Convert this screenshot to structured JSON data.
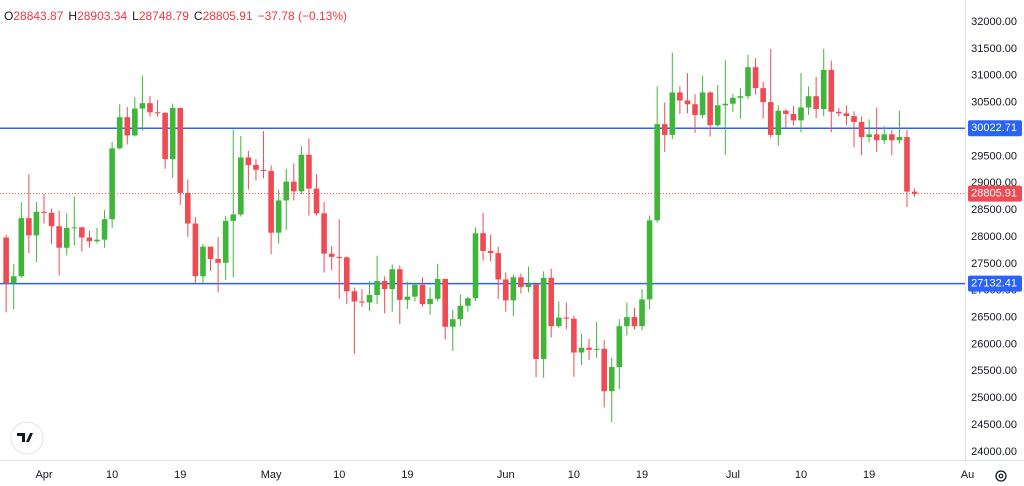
{
  "chart_data": {
    "type": "candlestick",
    "header_labels": [
      "O",
      "H",
      "L",
      "C"
    ],
    "change_text": "−37.78 (−0.13%)",
    "up_color": "#3fb63a",
    "down_color": "#ef4b54",
    "categories": [
      null,
      null,
      null,
      null,
      null,
      "Apr",
      null,
      null,
      null,
      null,
      null,
      null,
      null,
      null,
      "10",
      null,
      null,
      null,
      null,
      null,
      null,
      null,
      null,
      "19",
      null,
      null,
      null,
      null,
      null,
      null,
      null,
      null,
      null,
      null,
      null,
      "May",
      null,
      null,
      null,
      null,
      null,
      null,
      null,
      null,
      "10",
      null,
      null,
      null,
      null,
      null,
      null,
      null,
      null,
      "19",
      null,
      null,
      null,
      null,
      null,
      null,
      null,
      null,
      null,
      null,
      null,
      null,
      "Jun",
      null,
      null,
      null,
      null,
      null,
      null,
      null,
      null,
      "10",
      null,
      null,
      null,
      null,
      null,
      null,
      null,
      null,
      "19",
      null,
      null,
      null,
      null,
      null,
      null,
      null,
      null,
      null,
      null,
      null,
      "Jul",
      null,
      null,
      null,
      null,
      null,
      null,
      null,
      null,
      "10",
      null,
      null,
      null,
      null,
      null,
      null,
      null,
      null,
      "19",
      null,
      null,
      null,
      null,
      null,
      null,
      null,
      null,
      null,
      null,
      null,
      null,
      "Au"
    ],
    "open": [
      27990,
      27140,
      27270,
      28350,
      28030,
      28470,
      28450,
      28200,
      27800,
      28170,
      28180,
      27990,
      27920,
      27950,
      28330,
      29650,
      30230,
      29890,
      30390,
      30490,
      30320,
      30310,
      29450,
      30400,
      28820,
      28250,
      27270,
      27820,
      27590,
      27520,
      28300,
      28420,
      29480,
      29340,
      29250,
      29230,
      28080,
      28680,
      29030,
      28850,
      29530,
      28900,
      28440,
      27690,
      27630,
      27620,
      26990,
      26800,
      26780,
      26920,
      27180,
      27030,
      27400,
      26830,
      26890,
      27110,
      26750,
      26850,
      27220,
      26330,
      26470,
      26720,
      26860,
      28070,
      27740,
      27700,
      27210,
      26820,
      27250,
      27070,
      27120,
      25730,
      27240,
      26340,
      26500,
      26480,
      25850,
      25940,
      25900,
      25920,
      25130,
      25580,
      26340,
      26510,
      26340,
      26840,
      28310,
      30100,
      29900,
      30690,
      30540,
      30470,
      30270,
      30690,
      30080,
      30450,
      30480,
      30590,
      30620,
      31160,
      30770,
      30510,
      29900,
      30350,
      30290,
      30170,
      30410,
      30620,
      30380,
      31110,
      30330,
      30300,
      30250,
      30140,
      29860,
      29910,
      29800,
      29910,
      29800,
      29860,
      28843.87,
      null,
      null,
      null,
      null,
      null,
      null,
      null
    ],
    "high": [
      28040,
      27500,
      28650,
      29170,
      28650,
      28800,
      28530,
      28490,
      28440,
      28750,
      28190,
      28120,
      28170,
      28500,
      29770,
      30470,
      30420,
      30600,
      31000,
      30620,
      30550,
      30320,
      30480,
      30400,
      29070,
      28370,
      27870,
      27820,
      28000,
      28390,
      30000,
      29880,
      29600,
      29450,
      29970,
      29330,
      28880,
      29270,
      29370,
      29690,
      29830,
      29170,
      28650,
      27830,
      28330,
      27640,
      27060,
      27030,
      27180,
      27650,
      27270,
      27490,
      27470,
      27170,
      27150,
      27250,
      27060,
      27500,
      27220,
      26640,
      26930,
      26890,
      28180,
      28450,
      28040,
      27820,
      27340,
      27300,
      27320,
      27450,
      27130,
      27360,
      27410,
      26800,
      26780,
      26530,
      26200,
      26100,
      26420,
      26080,
      25750,
      26470,
      26780,
      26680,
      27030,
      28400,
      30800,
      30500,
      31430,
      30800,
      31050,
      30660,
      31000,
      30710,
      30830,
      31290,
      30660,
      30770,
      31390,
      31330,
      30890,
      31500,
      30450,
      30380,
      30440,
      31050,
      30800,
      30980,
      31500,
      31280,
      30400,
      30450,
      30340,
      30240,
      30190,
      30410,
      30060,
      29990,
      30350,
      29990,
      28903.34,
      null,
      null,
      null,
      null,
      null,
      null,
      null
    ],
    "low": [
      26600,
      26650,
      27240,
      27700,
      27530,
      28250,
      27870,
      27280,
      27660,
      27840,
      27730,
      27800,
      27880,
      27800,
      28170,
      29630,
      29720,
      29870,
      29980,
      30240,
      30240,
      29270,
      29100,
      28600,
      28000,
      27150,
      27150,
      27370,
      26970,
      27200,
      27250,
      28380,
      28880,
      29050,
      29090,
      27680,
      27880,
      28130,
      28680,
      28800,
      28400,
      28400,
      27340,
      27380,
      26850,
      26750,
      25830,
      26700,
      26620,
      26750,
      26580,
      26610,
      26380,
      26660,
      26800,
      26700,
      26550,
      26800,
      26090,
      25880,
      26340,
      26610,
      26810,
      27560,
      27550,
      26850,
      26610,
      26530,
      26950,
      26970,
      25390,
      25380,
      26130,
      26310,
      26280,
      25400,
      25620,
      25710,
      25750,
      24830,
      24550,
      25170,
      26170,
      26280,
      26260,
      26660,
      28270,
      29580,
      29820,
      30290,
      30300,
      29940,
      30210,
      29870,
      30050,
      29530,
      30330,
      30200,
      30570,
      30650,
      30200,
      29850,
      29700,
      30040,
      30070,
      29950,
      30270,
      30210,
      30250,
      29950,
      30240,
      30080,
      29670,
      29520,
      29760,
      29580,
      29730,
      29520,
      29740,
      28560,
      28748.79,
      null,
      null,
      null,
      null,
      null,
      null,
      null
    ],
    "close": [
      27140,
      27270,
      28350,
      28030,
      28470,
      28450,
      28200,
      27800,
      28170,
      28180,
      27990,
      27920,
      27950,
      28330,
      29650,
      30230,
      29890,
      30390,
      30490,
      30320,
      30310,
      29450,
      30400,
      28820,
      28250,
      27270,
      27820,
      27590,
      27520,
      28300,
      28420,
      29480,
      29340,
      29250,
      29230,
      28080,
      28680,
      29030,
      28850,
      29530,
      28900,
      28440,
      27690,
      27630,
      27620,
      26990,
      26800,
      26780,
      26920,
      27180,
      27030,
      27400,
      26830,
      26890,
      27110,
      26750,
      26850,
      27220,
      26330,
      26470,
      26720,
      26860,
      28070,
      27740,
      27700,
      27210,
      26820,
      27250,
      27070,
      27120,
      25730,
      27240,
      26340,
      26500,
      26480,
      25850,
      25940,
      25900,
      25920,
      25130,
      25580,
      26340,
      26510,
      26340,
      26840,
      28310,
      30100,
      29900,
      30690,
      30540,
      30470,
      30270,
      30690,
      30080,
      30450,
      30480,
      30590,
      30620,
      31160,
      30770,
      30510,
      29900,
      30350,
      30290,
      30170,
      30410,
      30620,
      30380,
      31110,
      30330,
      30300,
      30250,
      30140,
      29860,
      29910,
      29800,
      29910,
      29800,
      29860,
      28843.87,
      28805.91,
      null,
      null,
      null,
      null,
      null,
      null,
      null
    ],
    "hlines": [
      {
        "value": 30022.71,
        "color": "#2962ff"
      },
      {
        "value": 27132.41,
        "color": "#2962ff"
      }
    ],
    "ylim": [
      23850,
      32410
    ],
    "yticks": [
      {
        "value": 24000,
        "label": "24000.00"
      },
      {
        "value": 24500,
        "label": "24500.00"
      },
      {
        "value": 25000,
        "label": "25000.00"
      },
      {
        "value": 25500,
        "label": "25500.00"
      },
      {
        "value": 26000,
        "label": "26000.00"
      },
      {
        "value": 26500,
        "label": "26500.00"
      },
      {
        "value": 27000,
        "label": "27000.00"
      },
      {
        "value": 27500,
        "label": "27500.00"
      },
      {
        "value": 28000,
        "label": "28000.00"
      },
      {
        "value": 28500,
        "label": "28500.00"
      },
      {
        "value": 29000,
        "label": "29000.00"
      },
      {
        "value": 29500,
        "label": "29500.00"
      },
      {
        "value": 30000,
        "label": "30000.00"
      },
      {
        "value": 30500,
        "label": "30500.00"
      },
      {
        "value": 31000,
        "label": "31000.00"
      },
      {
        "value": 31500,
        "label": "31500.00"
      },
      {
        "value": 32000,
        "label": "32000.00"
      }
    ],
    "grid": false
  }
}
